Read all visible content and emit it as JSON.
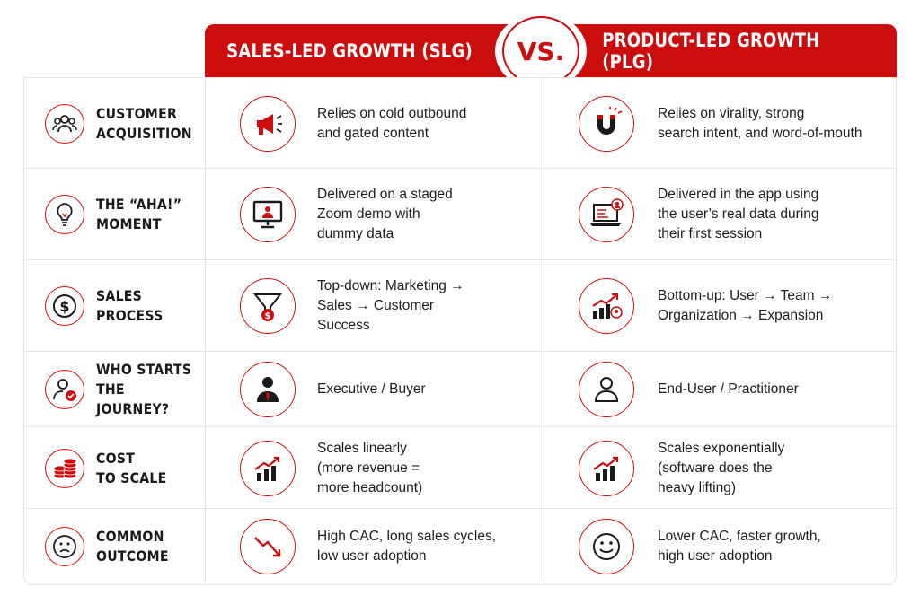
{
  "header": {
    "left_title": "SALES-LED GROWTH (SLG)",
    "vs_label": "VS.",
    "right_title": "PRODUCT-LED GROWTH (PLG)"
  },
  "colors": {
    "accent": "#cc0d0d",
    "text": "#1d1d1d",
    "border": "#e4e4e4"
  },
  "rows": [
    {
      "category": "CUSTOMER\nACQUISITION",
      "category_icon": "people-group-icon",
      "slg_text": "Relies on cold outbound\nand gated content",
      "slg_icon": "megaphone-icon",
      "plg_text": "Relies on virality, strong\nsearch intent, and word-of-mouth",
      "plg_icon": "magnet-icon"
    },
    {
      "category": "THE “AHA!”\nMOMENT",
      "category_icon": "lightbulb-icon",
      "slg_text": "Delivered on a staged\nZoom demo with\ndummy data",
      "slg_icon": "monitor-presenter-icon",
      "plg_text": "Delivered in the app using\nthe user’s real data during\ntheir first session",
      "plg_icon": "laptop-user-icon"
    },
    {
      "category": "SALES\nPROCESS",
      "category_icon": "dollar-coin-icon",
      "slg_text": "Top-down: Marketing →\nSales → Customer\nSuccess",
      "slg_icon": "sales-funnel-icon",
      "plg_text": "Bottom-up: User → Team →\nOrganization → Expansion",
      "plg_icon": "growth-chart-user-icon"
    },
    {
      "category": "WHO STARTS\nTHE JOURNEY?",
      "category_icon": "user-check-icon",
      "slg_text": "Executive / Buyer",
      "slg_icon": "executive-icon",
      "plg_text": "End-User / Practitioner",
      "plg_icon": "user-outline-icon"
    },
    {
      "category": "COST\nTO SCALE",
      "category_icon": "coin-stack-icon",
      "slg_text": "Scales linearly\n(more revenue =\nmore headcount)",
      "slg_icon": "bar-chart-up-icon",
      "plg_text": "Scales exponentially\n(software does the\nheavy lifting)",
      "plg_icon": "bar-chart-up-icon"
    },
    {
      "category": "COMMON\nOUTCOME",
      "category_icon": "sad-face-icon",
      "slg_text": "High CAC, long sales cycles,\nlow user adoption",
      "slg_icon": "trend-down-icon",
      "plg_text": "Lower CAC, faster growth,\nhigh user adoption",
      "plg_icon": "happy-face-icon"
    }
  ]
}
